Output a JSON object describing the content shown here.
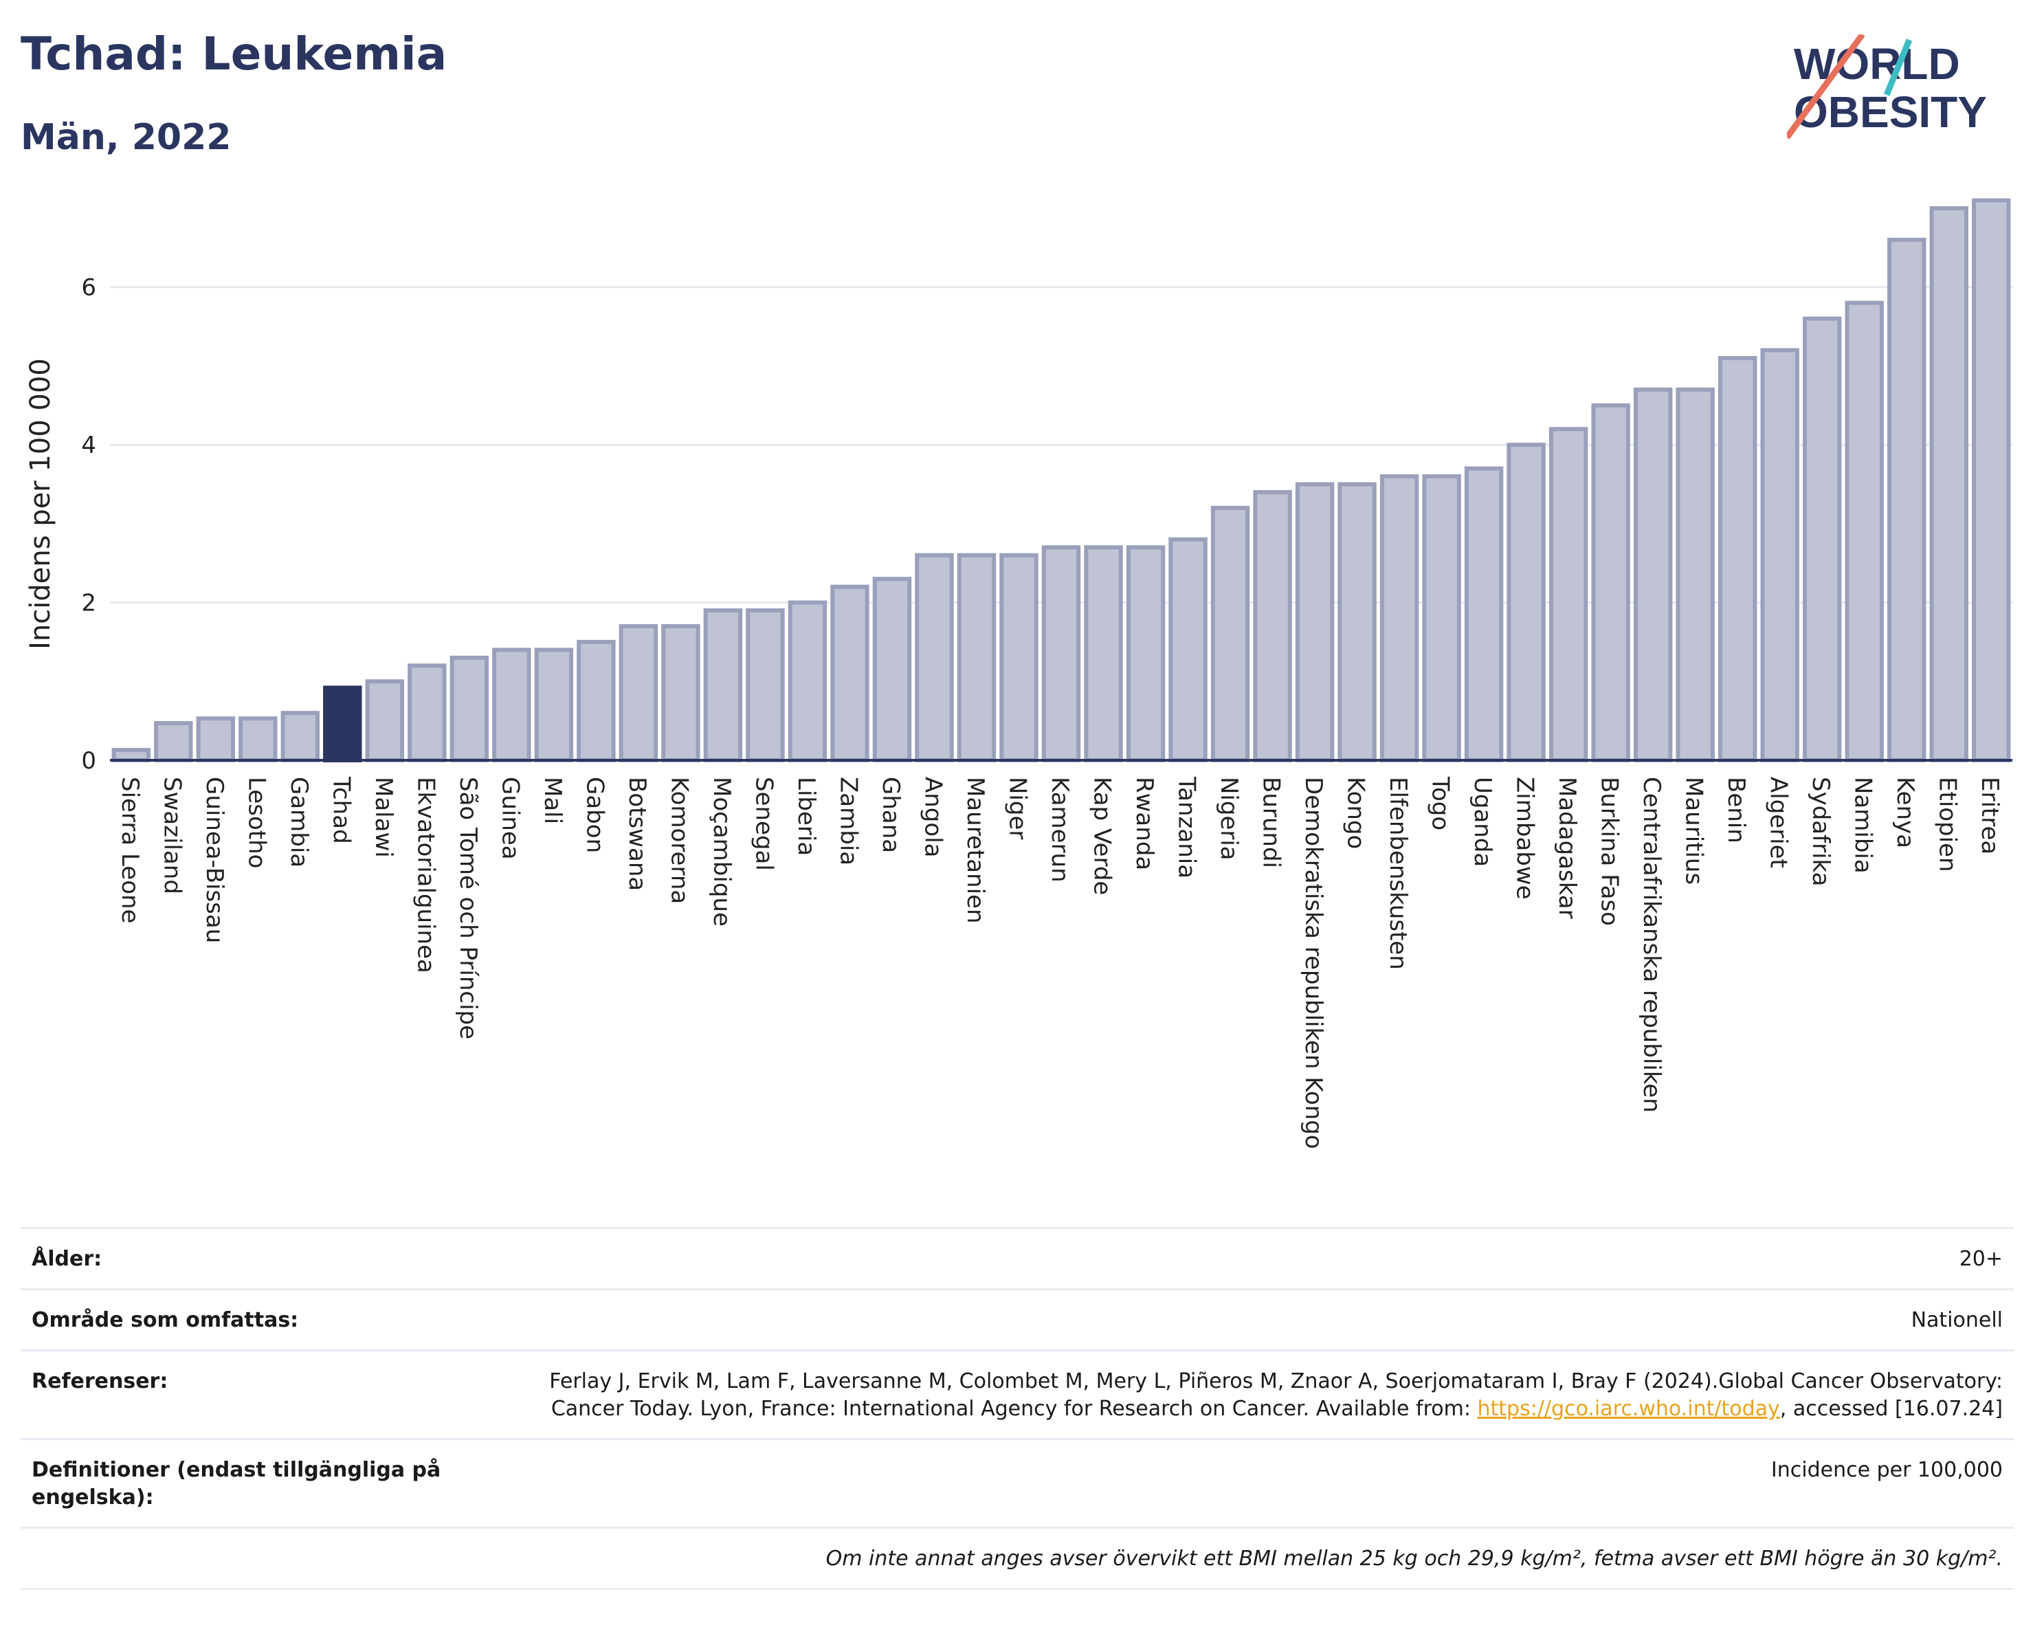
{
  "header": {
    "title": "Tchad: Leukemia",
    "subtitle": "Män, 2022"
  },
  "logo": {
    "line1": "WORLD",
    "line2": "OBESITY"
  },
  "colors": {
    "bar": "#bfc3d3",
    "bar_stroke": "#9aa0bb",
    "highlight": "#2a3560",
    "grid": "#e6e8ef",
    "axis": "#2a3560",
    "link": "#e8a31c"
  },
  "chart_data": {
    "type": "bar",
    "ylabel": "Incidens per 100 000",
    "ylim": [
      0,
      7.2
    ],
    "yticks": [
      0,
      2,
      4,
      6
    ],
    "grid": true,
    "highlight": "Tchad",
    "categories": [
      "Sierra Leone",
      "Swaziland",
      "Guinea-Bissau",
      "Lesotho",
      "Gambia",
      "Tchad",
      "Malawi",
      "Ekvatorialguinea",
      "São Tomé och Príncipe",
      "Guinea",
      "Mali",
      "Gabon",
      "Botswana",
      "Komorerna",
      "Moçambique",
      "Senegal",
      "Liberia",
      "Zambia",
      "Ghana",
      "Angola",
      "Mauretanien",
      "Niger",
      "Kamerun",
      "Kap Verde",
      "Rwanda",
      "Tanzania",
      "Nigeria",
      "Burundi",
      "Demokratiska republiken Kongo",
      "Kongo",
      "Elfenbenskusten",
      "Togo",
      "Uganda",
      "Zimbabwe",
      "Madagaskar",
      "Burkina Faso",
      "Centralafrikanska republiken",
      "Mauritius",
      "Benin",
      "Algeriet",
      "Sydafrika",
      "Namibia",
      "Kenya",
      "Etiopien",
      "Eritrea"
    ],
    "values": [
      0.13,
      0.47,
      0.53,
      0.53,
      0.6,
      0.92,
      1.0,
      1.2,
      1.3,
      1.4,
      1.4,
      1.5,
      1.7,
      1.7,
      1.9,
      1.9,
      2.0,
      2.2,
      2.3,
      2.6,
      2.6,
      2.6,
      2.7,
      2.7,
      2.7,
      2.8,
      3.2,
      3.4,
      3.5,
      3.5,
      3.6,
      3.6,
      3.7,
      4.0,
      4.2,
      4.5,
      4.7,
      4.7,
      5.1,
      5.2,
      5.6,
      5.8,
      6.6,
      7.0,
      7.1
    ]
  },
  "meta": {
    "age_label": "Ålder:",
    "age_value": "20+",
    "area_label": "Område som omfattas:",
    "area_value": "Nationell",
    "refs_label": "Referenser:",
    "refs_text": "Ferlay J, Ervik M, Lam F, Laversanne M, Colombet M, Mery L, Piñeros M, Znaor A, Soerjomataram I, Bray F (2024).Global Cancer Observatory: Cancer Today. Lyon, France: International Agency for Research on Cancer. Available from:",
    "refs_link": "https://gco.iarc.who.int/today",
    "refs_after": ", accessed [16.07.24]",
    "defs_label": "Definitioner (endast tillgängliga på engelska):",
    "defs_value": "Incidence per 100,000",
    "note": "Om inte annat anges avser övervikt ett BMI mellan 25 kg och 29,9 kg/m², fetma avser ett BMI högre än 30 kg/m²."
  }
}
